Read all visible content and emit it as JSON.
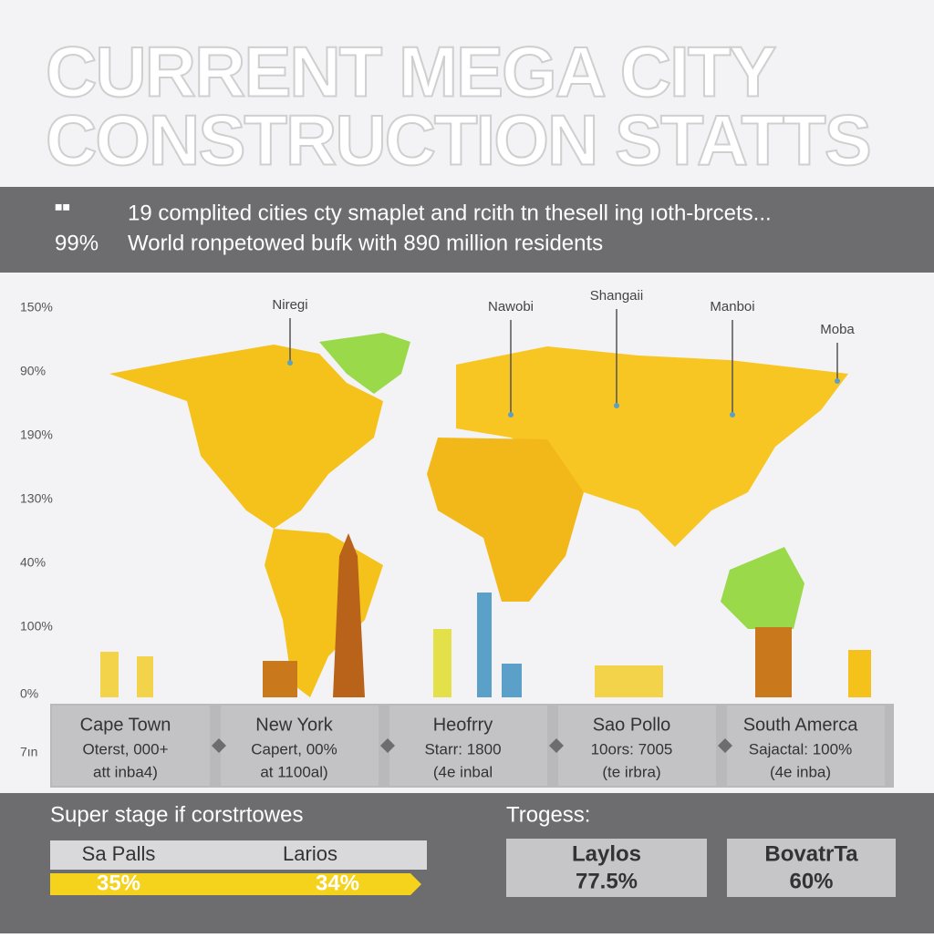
{
  "header": {
    "title_lines": [
      "CURRENT MEGA CITY",
      "CONSTRUCTION STATTS"
    ]
  },
  "banner": {
    "lines": [
      {
        "marker": "■■",
        "text": "19 complited cities cty smaplet and rcith tn thesell ing ıoth-brcets..."
      },
      {
        "marker": "99%",
        "text": "World ronpetowed bufk with 890 million residents"
      }
    ]
  },
  "map": {
    "axis_labels": [
      "150%",
      "90%",
      "190%",
      "130%",
      "40%",
      "100%",
      "0%",
      "7ın"
    ],
    "pins": [
      "Niregi",
      "Nawobi",
      "Shangaii",
      "Manboi",
      "Moba"
    ]
  },
  "cards": [
    {
      "title": "Cape Town",
      "line1": "Oterst, 000+",
      "line2": "att inba4)"
    },
    {
      "title": "New York",
      "line1": "Capert, 00%",
      "line2": "at 1100al)"
    },
    {
      "title": "Heofrry",
      "line1": "Starr: 1800",
      "line2": "(4e inbal"
    },
    {
      "title": "Sao Pollo",
      "line1": "10ors: 7005",
      "line2": "(te irbra)"
    },
    {
      "title": "South Amerca",
      "line1": "Sajactal: 100%",
      "line2": "(4e inba)"
    }
  ],
  "footer": {
    "stage_title": "Super stage if corstrtowes",
    "stage_items": [
      {
        "name": "Sa Palls",
        "value": "35%"
      },
      {
        "name": "Larios",
        "value": "34%"
      }
    ],
    "progress_title": "Trogess:",
    "progress_items": [
      {
        "name": "Laylos",
        "value": "77.5%"
      },
      {
        "name": "BovatrTa",
        "value": "60%"
      }
    ]
  }
}
